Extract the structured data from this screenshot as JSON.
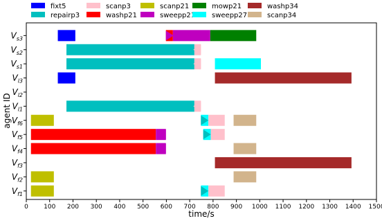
{
  "chart_data": {
    "type": "gantt",
    "xlabel": "time/s",
    "ylabel": "agent ID",
    "xlim": [
      0,
      1500
    ],
    "xticks": [
      0,
      100,
      200,
      300,
      400,
      500,
      600,
      700,
      800,
      900,
      1000,
      1100,
      1200,
      1300,
      1400,
      1500
    ],
    "legend": [
      {
        "name": "fixt5",
        "color": "#0000ff"
      },
      {
        "name": "repairp3",
        "color": "#00bfbf"
      },
      {
        "name": "scanp3",
        "color": "#ffc0cb"
      },
      {
        "name": "washp21",
        "color": "#ff0000"
      },
      {
        "name": "scanp21",
        "color": "#bfbf00"
      },
      {
        "name": "sweepp21",
        "color": "#bf00bf"
      },
      {
        "name": "mowp21",
        "color": "#008000"
      },
      {
        "name": "sweepp27",
        "color": "#00ffff"
      },
      {
        "name": "washp34",
        "color": "#a52a2a"
      },
      {
        "name": "scanp34",
        "color": "#d2b48c"
      }
    ],
    "agents": [
      {
        "main": "V",
        "sub": "s3"
      },
      {
        "main": "V",
        "sub": "s2"
      },
      {
        "main": "V",
        "sub": "s1"
      },
      {
        "main": "V",
        "sub": "l3"
      },
      {
        "main": "V",
        "sub": "l2"
      },
      {
        "main": "V",
        "sub": "l1"
      },
      {
        "main": "V",
        "sub": "f6"
      },
      {
        "main": "V",
        "sub": "f5"
      },
      {
        "main": "V",
        "sub": "f4"
      },
      {
        "main": "V",
        "sub": "f3"
      },
      {
        "main": "V",
        "sub": "f2"
      },
      {
        "main": "V",
        "sub": "f1"
      }
    ],
    "tasks": [
      {
        "agent": 0,
        "task": "fixt5",
        "start": 135,
        "end": 210
      },
      {
        "agent": 0,
        "task": "washp21",
        "start": 598,
        "end": 628
      },
      {
        "agent": 0,
        "task": "sweepp21",
        "start": 628,
        "end": 788
      },
      {
        "agent": 0,
        "task": "mowp21",
        "start": 788,
        "end": 985
      },
      {
        "agent": 1,
        "task": "repairp3",
        "start": 172,
        "end": 720
      },
      {
        "agent": 1,
        "task": "scanp3",
        "start": 720,
        "end": 748
      },
      {
        "agent": 2,
        "task": "repairp3",
        "start": 172,
        "end": 720
      },
      {
        "agent": 2,
        "task": "scanp3",
        "start": 720,
        "end": 748
      },
      {
        "agent": 2,
        "task": "sweepp27",
        "start": 808,
        "end": 1005
      },
      {
        "agent": 3,
        "task": "fixt5",
        "start": 135,
        "end": 210
      },
      {
        "agent": 3,
        "task": "washp34",
        "start": 808,
        "end": 1393
      },
      {
        "agent": 5,
        "task": "repairp3",
        "start": 172,
        "end": 720
      },
      {
        "agent": 5,
        "task": "scanp3",
        "start": 720,
        "end": 748
      },
      {
        "agent": 6,
        "task": "scanp21",
        "start": 20,
        "end": 118
      },
      {
        "agent": 6,
        "task": "sweepp27",
        "start": 748,
        "end": 780
      },
      {
        "agent": 6,
        "task": "scanp3",
        "start": 780,
        "end": 850
      },
      {
        "agent": 6,
        "task": "scanp34",
        "start": 888,
        "end": 985
      },
      {
        "agent": 7,
        "task": "washp21",
        "start": 20,
        "end": 555
      },
      {
        "agent": 7,
        "task": "sweepp21",
        "start": 555,
        "end": 598
      },
      {
        "agent": 7,
        "task": "sweepp27",
        "start": 758,
        "end": 790
      },
      {
        "agent": 7,
        "task": "scanp3",
        "start": 790,
        "end": 850
      },
      {
        "agent": 8,
        "task": "washp21",
        "start": 20,
        "end": 555
      },
      {
        "agent": 8,
        "task": "sweepp21",
        "start": 555,
        "end": 598
      },
      {
        "agent": 8,
        "task": "scanp34",
        "start": 888,
        "end": 985
      },
      {
        "agent": 9,
        "task": "washp34",
        "start": 808,
        "end": 1393
      },
      {
        "agent": 10,
        "task": "scanp21",
        "start": 20,
        "end": 118
      },
      {
        "agent": 10,
        "task": "scanp34",
        "start": 888,
        "end": 985
      },
      {
        "agent": 11,
        "task": "scanp21",
        "start": 20,
        "end": 118
      },
      {
        "agent": 11,
        "task": "sweepp27",
        "start": 748,
        "end": 780
      },
      {
        "agent": 11,
        "task": "scanp3",
        "start": 780,
        "end": 850
      }
    ],
    "markers": [
      {
        "agent": 0,
        "x": 598,
        "direction": "right",
        "color": "#bf00bf"
      },
      {
        "agent": 1,
        "x": 748,
        "direction": "left",
        "color": "#ffc0cb"
      },
      {
        "agent": 2,
        "x": 748,
        "direction": "left",
        "color": "#ffc0cb"
      },
      {
        "agent": 5,
        "x": 748,
        "direction": "left",
        "color": "#ffc0cb"
      },
      {
        "agent": 6,
        "x": 748,
        "direction": "right",
        "color": "#00bfbf"
      },
      {
        "agent": 7,
        "x": 598,
        "direction": "left",
        "color": "#bf00bf"
      },
      {
        "agent": 7,
        "x": 758,
        "direction": "right",
        "color": "#00bfbf"
      },
      {
        "agent": 8,
        "x": 598,
        "direction": "left",
        "color": "#bf00bf"
      },
      {
        "agent": 11,
        "x": 748,
        "direction": "right",
        "color": "#00bfbf"
      }
    ],
    "grid": false,
    "legend_placement": "top"
  }
}
